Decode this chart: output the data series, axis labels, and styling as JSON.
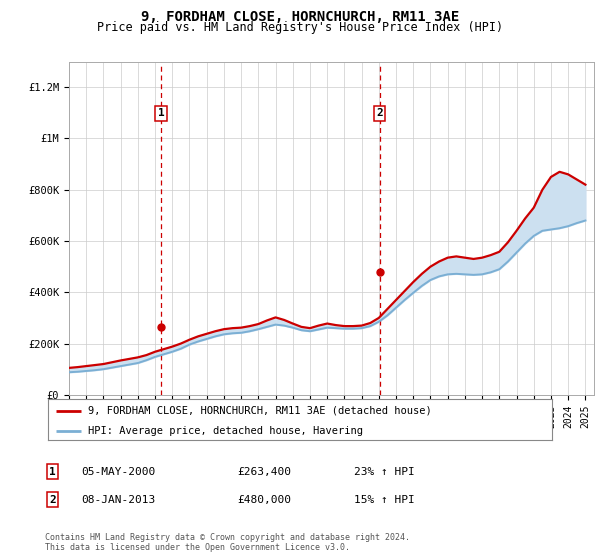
{
  "title": "9, FORDHAM CLOSE, HORNCHURCH, RM11 3AE",
  "subtitle": "Price paid vs. HM Land Registry's House Price Index (HPI)",
  "hpi_label": "HPI: Average price, detached house, Havering",
  "property_label": "9, FORDHAM CLOSE, HORNCHURCH, RM11 3AE (detached house)",
  "transaction1": {
    "label": "1",
    "date": "05-MAY-2000",
    "price": "£263,400",
    "change": "23% ↑ HPI"
  },
  "transaction2": {
    "label": "2",
    "date": "08-JAN-2013",
    "price": "£480,000",
    "change": "15% ↑ HPI"
  },
  "footnote1": "Contains HM Land Registry data © Crown copyright and database right 2024.",
  "footnote2": "This data is licensed under the Open Government Licence v3.0.",
  "property_color": "#cc0000",
  "hpi_color": "#7bafd4",
  "shading_color": "#cce0f0",
  "vline_color": "#cc0000",
  "ylim": [
    0,
    1300000
  ],
  "yticks": [
    0,
    200000,
    400000,
    600000,
    800000,
    1000000,
    1200000
  ],
  "ytick_labels": [
    "£0",
    "£200K",
    "£400K",
    "£600K",
    "£800K",
    "£1M",
    "£1.2M"
  ],
  "hpi_data": [
    [
      1995,
      88000
    ],
    [
      1995.5,
      90000
    ],
    [
      1996,
      93000
    ],
    [
      1996.5,
      96000
    ],
    [
      1997,
      100000
    ],
    [
      1997.5,
      106000
    ],
    [
      1998,
      112000
    ],
    [
      1998.5,
      118000
    ],
    [
      1999,
      124000
    ],
    [
      1999.5,
      135000
    ],
    [
      2000,
      148000
    ],
    [
      2000.5,
      158000
    ],
    [
      2001,
      168000
    ],
    [
      2001.5,
      180000
    ],
    [
      2002,
      196000
    ],
    [
      2002.5,
      208000
    ],
    [
      2003,
      218000
    ],
    [
      2003.5,
      228000
    ],
    [
      2004,
      236000
    ],
    [
      2004.5,
      240000
    ],
    [
      2005,
      242000
    ],
    [
      2005.5,
      248000
    ],
    [
      2006,
      256000
    ],
    [
      2006.5,
      265000
    ],
    [
      2007,
      274000
    ],
    [
      2007.5,
      270000
    ],
    [
      2008,
      262000
    ],
    [
      2008.5,
      252000
    ],
    [
      2009,
      248000
    ],
    [
      2009.5,
      255000
    ],
    [
      2010,
      262000
    ],
    [
      2010.5,
      260000
    ],
    [
      2011,
      258000
    ],
    [
      2011.5,
      258000
    ],
    [
      2012,
      260000
    ],
    [
      2012.5,
      268000
    ],
    [
      2013,
      285000
    ],
    [
      2013.5,
      310000
    ],
    [
      2014,
      340000
    ],
    [
      2014.5,
      370000
    ],
    [
      2015,
      398000
    ],
    [
      2015.5,
      425000
    ],
    [
      2016,
      448000
    ],
    [
      2016.5,
      462000
    ],
    [
      2017,
      470000
    ],
    [
      2017.5,
      472000
    ],
    [
      2018,
      470000
    ],
    [
      2018.5,
      468000
    ],
    [
      2019,
      470000
    ],
    [
      2019.5,
      478000
    ],
    [
      2020,
      490000
    ],
    [
      2020.5,
      520000
    ],
    [
      2021,
      555000
    ],
    [
      2021.5,
      590000
    ],
    [
      2022,
      620000
    ],
    [
      2022.5,
      640000
    ],
    [
      2023,
      645000
    ],
    [
      2023.5,
      650000
    ],
    [
      2024,
      658000
    ],
    [
      2024.5,
      670000
    ],
    [
      2025,
      680000
    ]
  ],
  "property_data": [
    [
      1995,
      105000
    ],
    [
      1995.5,
      108000
    ],
    [
      1996,
      112000
    ],
    [
      1996.5,
      116000
    ],
    [
      1997,
      120000
    ],
    [
      1997.5,
      127000
    ],
    [
      1998,
      134000
    ],
    [
      1998.5,
      140000
    ],
    [
      1999,
      146000
    ],
    [
      1999.5,
      155000
    ],
    [
      2000,
      168000
    ],
    [
      2000.5,
      178000
    ],
    [
      2001,
      188000
    ],
    [
      2001.5,
      200000
    ],
    [
      2002,
      215000
    ],
    [
      2002.5,
      228000
    ],
    [
      2003,
      238000
    ],
    [
      2003.5,
      248000
    ],
    [
      2004,
      256000
    ],
    [
      2004.5,
      260000
    ],
    [
      2005,
      262000
    ],
    [
      2005.5,
      268000
    ],
    [
      2006,
      276000
    ],
    [
      2006.5,
      290000
    ],
    [
      2007,
      302000
    ],
    [
      2007.5,
      292000
    ],
    [
      2008,
      278000
    ],
    [
      2008.5,
      265000
    ],
    [
      2009,
      260000
    ],
    [
      2009.5,
      270000
    ],
    [
      2010,
      278000
    ],
    [
      2010.5,
      272000
    ],
    [
      2011,
      268000
    ],
    [
      2011.5,
      268000
    ],
    [
      2012,
      270000
    ],
    [
      2012.5,
      280000
    ],
    [
      2013,
      300000
    ],
    [
      2013.5,
      335000
    ],
    [
      2014,
      370000
    ],
    [
      2014.5,
      405000
    ],
    [
      2015,
      440000
    ],
    [
      2015.5,
      472000
    ],
    [
      2016,
      500000
    ],
    [
      2016.5,
      520000
    ],
    [
      2017,
      535000
    ],
    [
      2017.5,
      540000
    ],
    [
      2018,
      535000
    ],
    [
      2018.5,
      530000
    ],
    [
      2019,
      535000
    ],
    [
      2019.5,
      545000
    ],
    [
      2020,
      558000
    ],
    [
      2020.5,
      595000
    ],
    [
      2021,
      640000
    ],
    [
      2021.5,
      688000
    ],
    [
      2022,
      730000
    ],
    [
      2022.5,
      800000
    ],
    [
      2023,
      850000
    ],
    [
      2023.5,
      870000
    ],
    [
      2024,
      860000
    ],
    [
      2024.5,
      840000
    ],
    [
      2025,
      820000
    ]
  ],
  "transaction1_year": 2000.35,
  "transaction1_price": 263400,
  "transaction2_year": 2013.04,
  "transaction2_price": 480000
}
